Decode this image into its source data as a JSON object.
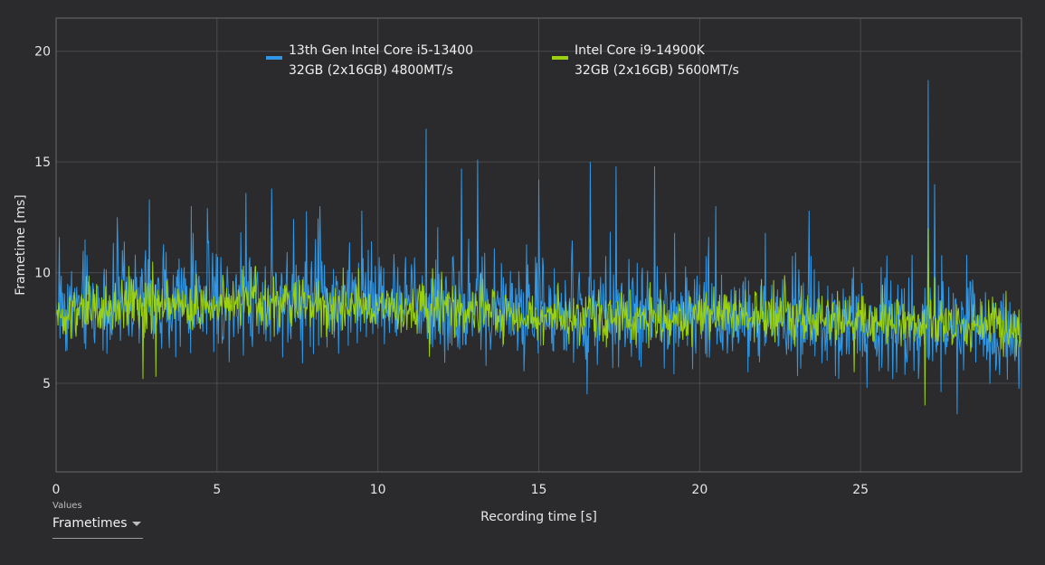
{
  "chart_data": {
    "type": "line",
    "title": "",
    "xlabel": "Recording time [s]",
    "ylabel": "Frametime [ms]",
    "xlim": [
      0,
      30
    ],
    "ylim": [
      1,
      21.5
    ],
    "x_ticks": [
      0,
      5,
      10,
      15,
      20,
      25
    ],
    "y_ticks": [
      5,
      10,
      15,
      20
    ],
    "grid": true,
    "legend_position": "top",
    "sample_interval_s": 0.02,
    "series": [
      {
        "name_line1": "13th Gen Intel Core i5-13400",
        "name_line2": "32GB (2x16GB) 4800MT/s",
        "color": "#2f97e6",
        "trend": [
          [
            0,
            8.4
          ],
          [
            3,
            8.8
          ],
          [
            6,
            8.9
          ],
          [
            9,
            8.8
          ],
          [
            12,
            8.5
          ],
          [
            15,
            8.2
          ],
          [
            18,
            8.0
          ],
          [
            21,
            8.0
          ],
          [
            24,
            7.9
          ],
          [
            27,
            7.6
          ],
          [
            30,
            7.3
          ]
        ],
        "spread": 1.1,
        "spikes": [
          [
            0.1,
            11.6
          ],
          [
            0.9,
            11.5
          ],
          [
            1.9,
            12.5
          ],
          [
            2.9,
            13.3
          ],
          [
            4.2,
            13.0
          ],
          [
            5.9,
            13.6
          ],
          [
            6.7,
            13.8
          ],
          [
            8.2,
            13.0
          ],
          [
            9.5,
            12.8
          ],
          [
            11.5,
            16.5
          ],
          [
            12.6,
            14.7
          ],
          [
            13.1,
            15.1
          ],
          [
            15.0,
            14.2
          ],
          [
            16.6,
            15.0
          ],
          [
            17.4,
            14.8
          ],
          [
            18.6,
            14.8
          ],
          [
            20.5,
            13.0
          ],
          [
            23.4,
            12.8
          ],
          [
            27.1,
            18.7
          ],
          [
            27.3,
            14.0
          ],
          [
            28.3,
            10.8
          ],
          [
            16.5,
            4.5
          ],
          [
            26.8,
            5.2
          ],
          [
            28.0,
            3.6
          ],
          [
            25.2,
            4.8
          ],
          [
            21.5,
            5.5
          ]
        ]
      },
      {
        "name_line1": "Intel Core i9-14900K",
        "name_line2": "32GB (2x16GB) 5600MT/s",
        "color": "#9bd10e",
        "trend": [
          [
            0,
            8.0
          ],
          [
            3,
            8.5
          ],
          [
            6,
            8.6
          ],
          [
            9,
            8.4
          ],
          [
            12,
            8.3
          ],
          [
            15,
            8.0
          ],
          [
            18,
            7.9
          ],
          [
            21,
            8.1
          ],
          [
            24,
            7.9
          ],
          [
            27,
            7.7
          ],
          [
            30,
            7.4
          ]
        ],
        "spread": 0.55,
        "spikes": [
          [
            2.7,
            5.2
          ],
          [
            3.0,
            10.5
          ],
          [
            3.1,
            5.3
          ],
          [
            6.2,
            10.3
          ],
          [
            11.7,
            10.2
          ],
          [
            13.2,
            10.0
          ],
          [
            27.0,
            4.0
          ],
          [
            27.1,
            12.0
          ],
          [
            27.3,
            9.8
          ],
          [
            24.8,
            5.5
          ],
          [
            11.6,
            6.2
          ]
        ]
      }
    ]
  },
  "values_selector": {
    "caption": "Values",
    "selected": "Frametimes"
  }
}
